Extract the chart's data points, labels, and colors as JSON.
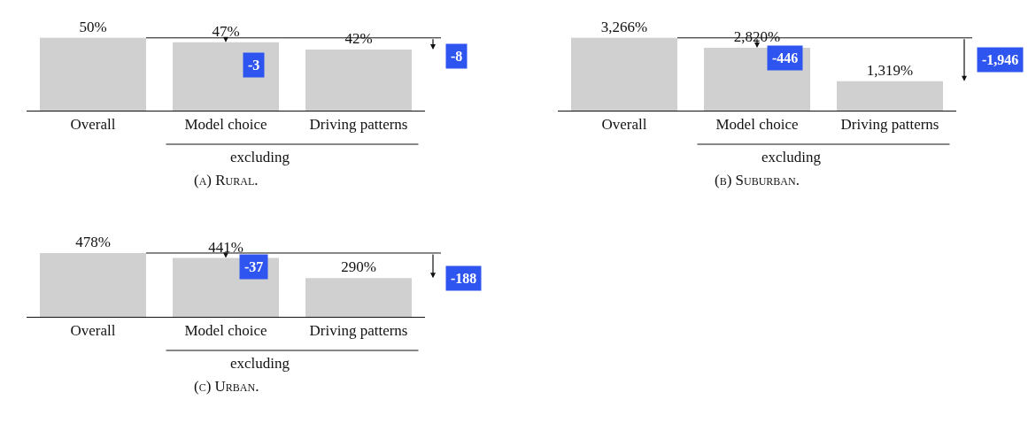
{
  "chart_data": [
    {
      "type": "bar",
      "title": "(a) Rural.",
      "categories": [
        "Overall",
        "Model choice",
        "Driving patterns"
      ],
      "values": [
        50,
        47,
        42
      ],
      "color": "#d0d0d0",
      "value_labels": [
        "50%",
        "47%",
        "42%"
      ],
      "annotations": [
        "excluding",
        "-3",
        "-8"
      ],
      "grid": false,
      "legend": false
    },
    {
      "type": "bar",
      "title": "(b) Suburban.",
      "categories": [
        "Overall",
        "Model choice",
        "Driving patterns"
      ],
      "values": [
        3266,
        2820,
        1319
      ],
      "color": "#d0d0d0",
      "value_labels": [
        "3,266%",
        "2,820%",
        "1,319%"
      ],
      "annotations": [
        "excluding",
        "-446",
        "-1,946"
      ],
      "grid": false,
      "legend": false
    },
    {
      "type": "bar",
      "title": "(c) Urban.",
      "categories": [
        "Overall",
        "Model choice",
        "Driving patterns"
      ],
      "values": [
        478,
        441,
        290
      ],
      "color": "#d0d0d0",
      "value_labels": [
        "478%",
        "441%",
        "290%"
      ],
      "annotations": [
        "excluding",
        "-37",
        "-188"
      ],
      "grid": false,
      "legend": false
    }
  ]
}
